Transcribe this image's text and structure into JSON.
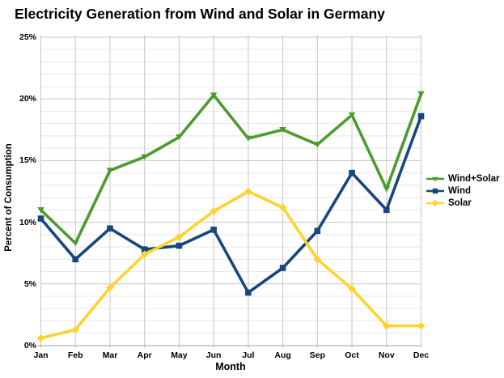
{
  "title": "Electricity Generation from Wind and Solar in Germany",
  "chart_data": {
    "type": "line",
    "title": "Electricity Generation from Wind and Solar in Germany",
    "xlabel": "Month",
    "ylabel": "Percent of Consumption",
    "categories": [
      "Jan",
      "Feb",
      "Mar",
      "Apr",
      "May",
      "Jun",
      "Jul",
      "Aug",
      "Sep",
      "Oct",
      "Nov",
      "Dec"
    ],
    "series": [
      {
        "name": "Wind+Solar",
        "color": "#4c9c2d",
        "marker": "triangle-down",
        "values": [
          11.0,
          8.3,
          14.2,
          15.3,
          16.9,
          20.3,
          16.8,
          17.5,
          16.3,
          18.7,
          12.7,
          20.4
        ]
      },
      {
        "name": "Wind",
        "color": "#17477e",
        "marker": "square",
        "values": [
          10.3,
          7.0,
          9.5,
          7.8,
          8.1,
          9.4,
          4.3,
          6.3,
          9.3,
          14.0,
          11.0,
          18.6
        ]
      },
      {
        "name": "Solar",
        "color": "#ffd32e",
        "marker": "diamond",
        "values": [
          0.6,
          1.3,
          4.7,
          7.4,
          8.8,
          10.9,
          12.5,
          11.2,
          7.0,
          4.6,
          1.6,
          1.6
        ]
      }
    ],
    "ylim": [
      0,
      25
    ],
    "y_major_step": 5,
    "y_minor_step": 1,
    "y_tick_suffix": "%",
    "grid": true,
    "legend_position": "right",
    "colors": {
      "grid_major": "#c6c6c6",
      "grid_minor": "#e8e8e8",
      "axis": "#9f9f9f",
      "text": "#000000"
    }
  }
}
